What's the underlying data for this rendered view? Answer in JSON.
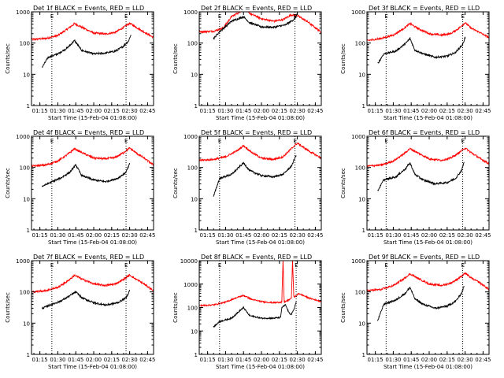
{
  "chart_data": [
    {
      "type": "line",
      "title": "Det 1f BLACK = Events, RED = LLD",
      "xlabel": "Start Time (15-Feb-04 01:08:00)",
      "ylabel": "Counts/sec",
      "yscale": "log",
      "ylim": [
        1,
        1000
      ],
      "xlim": [
        "01:08",
        "02:50"
      ],
      "x_ticks": [
        "01:15",
        "01:30",
        "01:45",
        "02:00",
        "02:15",
        "02:30",
        "02:45"
      ],
      "y_ticks": [
        "1",
        "10",
        "100",
        "1000"
      ],
      "markers": [
        {
          "x": "01:25",
          "label": "E"
        },
        {
          "x": "02:27",
          "label": "E"
        }
      ],
      "series": [
        {
          "color": "#ff0000",
          "x": [
            "01:08",
            "01:20",
            "01:30",
            "01:38",
            "01:44",
            "01:50",
            "02:00",
            "02:10",
            "02:18",
            "02:24",
            "02:30",
            "02:35",
            "02:40",
            "02:50"
          ],
          "values": [
            130,
            140,
            175,
            280,
            420,
            320,
            210,
            195,
            220,
            300,
            430,
            330,
            250,
            150
          ]
        },
        {
          "color": "#000000",
          "x": [
            "01:17",
            "01:22",
            "01:30",
            "01:38",
            "01:44",
            "01:50",
            "02:00",
            "02:10",
            "02:18",
            "02:24",
            "02:29",
            "02:31"
          ],
          "values": [
            17,
            35,
            45,
            70,
            120,
            58,
            45,
            48,
            55,
            75,
            115,
            180
          ]
        }
      ]
    },
    {
      "type": "line",
      "title": "Det 2f BLACK = Events, RED = LLD",
      "xlabel": "Start Time (15-Feb-04 01:08:00)",
      "ylabel": "Counts/sec",
      "yscale": "log",
      "ylim": [
        1,
        1000
      ],
      "xlim": [
        "01:08",
        "02:50"
      ],
      "x_ticks": [
        "01:15",
        "01:30",
        "01:45",
        "02:00",
        "02:15",
        "02:30",
        "02:45"
      ],
      "y_ticks": [
        "1",
        "10",
        "100",
        "1000"
      ],
      "markers": [
        {
          "x": "01:25",
          "label": "E"
        },
        {
          "x": "02:28",
          "label": "E"
        }
      ],
      "series": [
        {
          "color": "#ff0000",
          "x": [
            "01:08",
            "01:20",
            "01:28",
            "01:35",
            "01:42",
            "01:45",
            "01:50",
            "02:00",
            "02:10",
            "02:18",
            "02:25",
            "02:30",
            "02:38",
            "02:50"
          ],
          "values": [
            230,
            240,
            300,
            700,
            1000,
            1250,
            900,
            600,
            500,
            560,
            800,
            750,
            500,
            220
          ]
        },
        {
          "color": "#000000",
          "x": [
            "01:20",
            "01:25",
            "01:35",
            "01:45",
            "01:50",
            "02:00",
            "02:10",
            "02:20",
            "02:28",
            "02:30"
          ],
          "values": [
            140,
            230,
            500,
            700,
            450,
            330,
            320,
            380,
            600,
            900
          ]
        }
      ]
    },
    {
      "type": "line",
      "title": "Det 3f BLACK = Events, RED = LLD",
      "xlabel": "Start Time (15-Feb-04 01:08:00)",
      "ylabel": "Counts/sec",
      "yscale": "log",
      "ylim": [
        1,
        1000
      ],
      "xlim": [
        "01:08",
        "02:50"
      ],
      "x_ticks": [
        "01:15",
        "01:30",
        "01:45",
        "02:00",
        "02:15",
        "02:30",
        "02:45"
      ],
      "y_ticks": [
        "1",
        "10",
        "100",
        "1000"
      ],
      "markers": [
        {
          "x": "01:24",
          "label": "E"
        },
        {
          "x": "02:28",
          "label": "E"
        }
      ],
      "series": [
        {
          "color": "#ff0000",
          "x": [
            "01:08",
            "01:20",
            "01:30",
            "01:38",
            "01:44",
            "01:50",
            "02:00",
            "02:10",
            "02:18",
            "02:25",
            "02:30",
            "02:35",
            "02:42",
            "02:50"
          ],
          "values": [
            120,
            140,
            180,
            280,
            420,
            300,
            200,
            180,
            200,
            300,
            450,
            300,
            220,
            150
          ]
        },
        {
          "color": "#000000",
          "x": [
            "01:17",
            "01:22",
            "01:32",
            "01:40",
            "01:44",
            "01:48",
            "01:55",
            "02:05",
            "02:15",
            "02:22",
            "02:28",
            "02:30"
          ],
          "values": [
            22,
            45,
            55,
            95,
            140,
            60,
            45,
            35,
            38,
            50,
            90,
            150
          ]
        }
      ]
    },
    {
      "type": "line",
      "title": "Det 4f BLACK = Events, RED = LLD",
      "xlabel": "Start Time (15-Feb-04 01:08:00)",
      "ylabel": "Counts/sec",
      "yscale": "log",
      "ylim": [
        1,
        1000
      ],
      "xlim": [
        "01:08",
        "02:50"
      ],
      "x_ticks": [
        "01:15",
        "01:30",
        "01:45",
        "02:00",
        "02:15",
        "02:30",
        "02:45"
      ],
      "y_ticks": [
        "1",
        "10",
        "100",
        "1000"
      ],
      "markers": [
        {
          "x": "01:25",
          "label": "E"
        },
        {
          "x": "02:27",
          "label": "E"
        }
      ],
      "series": [
        {
          "color": "#ff0000",
          "x": [
            "01:08",
            "01:20",
            "01:30",
            "01:38",
            "01:44",
            "01:50",
            "02:00",
            "02:10",
            "02:18",
            "02:25",
            "02:30",
            "02:35",
            "02:42",
            "02:50"
          ],
          "values": [
            110,
            120,
            160,
            260,
            400,
            300,
            200,
            190,
            210,
            300,
            420,
            300,
            200,
            120
          ]
        },
        {
          "color": "#000000",
          "x": [
            "01:17",
            "01:25",
            "01:32",
            "01:40",
            "01:45",
            "01:50",
            "02:00",
            "02:10",
            "02:20",
            "02:27",
            "02:30"
          ],
          "values": [
            25,
            35,
            45,
            70,
            120,
            55,
            40,
            35,
            45,
            70,
            130
          ]
        }
      ]
    },
    {
      "type": "line",
      "title": "Det 5f BLACK = Events, RED = LLD",
      "xlabel": "Start Time (15-Feb-04 01:08:00)",
      "ylabel": "Counts/sec",
      "yscale": "log",
      "ylim": [
        1,
        1000
      ],
      "xlim": [
        "01:08",
        "02:50"
      ],
      "x_ticks": [
        "01:15",
        "01:30",
        "01:45",
        "02:00",
        "02:15",
        "02:30",
        "02:45"
      ],
      "y_ticks": [
        "1",
        "10",
        "100",
        "1000"
      ],
      "markers": [
        {
          "x": "01:25",
          "label": "E"
        },
        {
          "x": "02:28",
          "label": "E"
        }
      ],
      "series": [
        {
          "color": "#ff0000",
          "x": [
            "01:08",
            "01:20",
            "01:30",
            "01:40",
            "01:45",
            "01:52",
            "02:00",
            "02:10",
            "02:18",
            "02:25",
            "02:30",
            "02:40",
            "02:50"
          ],
          "values": [
            170,
            180,
            220,
            350,
            500,
            300,
            200,
            180,
            220,
            400,
            600,
            330,
            200
          ]
        },
        {
          "color": "#000000",
          "x": [
            "01:20",
            "01:25",
            "01:35",
            "01:45",
            "01:50",
            "02:00",
            "02:10",
            "02:18",
            "02:25",
            "02:29"
          ],
          "values": [
            12,
            45,
            60,
            140,
            80,
            55,
            50,
            60,
            110,
            250
          ]
        }
      ]
    },
    {
      "type": "line",
      "title": "Det 6f BLACK = Events, RED = LLD",
      "xlabel": "Start Time (15-Feb-04 01:08:00)",
      "ylabel": "Counts/sec",
      "yscale": "log",
      "ylim": [
        1,
        1000
      ],
      "xlim": [
        "01:08",
        "02:50"
      ],
      "x_ticks": [
        "01:15",
        "01:30",
        "01:45",
        "02:00",
        "02:15",
        "02:30",
        "02:45"
      ],
      "y_ticks": [
        "1",
        "10",
        "100",
        "1000"
      ],
      "markers": [
        {
          "x": "01:24",
          "label": "E"
        },
        {
          "x": "02:28",
          "label": "E"
        }
      ],
      "series": [
        {
          "color": "#ff0000",
          "x": [
            "01:08",
            "01:20",
            "01:30",
            "01:38",
            "01:44",
            "01:50",
            "02:00",
            "02:10",
            "02:18",
            "02:25",
            "02:30",
            "02:35",
            "02:42",
            "02:50"
          ],
          "values": [
            110,
            120,
            160,
            260,
            400,
            300,
            190,
            170,
            200,
            300,
            420,
            300,
            200,
            130
          ]
        },
        {
          "color": "#000000",
          "x": [
            "01:17",
            "01:22",
            "01:32",
            "01:40",
            "01:44",
            "01:48",
            "01:55",
            "02:05",
            "02:15",
            "02:22",
            "02:27",
            "02:29"
          ],
          "values": [
            18,
            40,
            50,
            90,
            140,
            60,
            40,
            30,
            33,
            45,
            80,
            140
          ]
        }
      ]
    },
    {
      "type": "line",
      "title": "Det 7f BLACK = Events, RED = LLD",
      "xlabel": "Start Time (15-Feb-04 01:08:00)",
      "ylabel": "Counts/sec",
      "yscale": "log",
      "ylim": [
        1,
        1000
      ],
      "xlim": [
        "01:08",
        "02:50"
      ],
      "x_ticks": [
        "01:15",
        "01:30",
        "01:45",
        "02:00",
        "02:15",
        "02:30",
        "02:45"
      ],
      "y_ticks": [
        "1",
        "10",
        "100",
        "1000"
      ],
      "markers": [
        {
          "x": "01:25",
          "label": "E"
        },
        {
          "x": "02:27",
          "label": "E"
        }
      ],
      "series": [
        {
          "color": "#ff0000",
          "x": [
            "01:08",
            "01:20",
            "01:30",
            "01:38",
            "01:44",
            "01:50",
            "02:00",
            "02:10",
            "02:18",
            "02:25",
            "02:30",
            "02:35",
            "02:42",
            "02:50"
          ],
          "values": [
            100,
            110,
            140,
            220,
            340,
            260,
            180,
            160,
            180,
            250,
            350,
            260,
            180,
            110
          ]
        },
        {
          "color": "#000000",
          "x": [
            "01:17",
            "01:25",
            "01:32",
            "01:40",
            "01:45",
            "01:50",
            "02:00",
            "02:10",
            "02:20",
            "02:27",
            "02:30"
          ],
          "values": [
            30,
            40,
            50,
            75,
            100,
            65,
            45,
            38,
            45,
            65,
            110
          ]
        }
      ]
    },
    {
      "type": "line",
      "title": "Det 8f BLACK = Events, RED = LLD",
      "xlabel": "Start Time (15-Feb-04 01:08:00)",
      "ylabel": "Counts/sec",
      "yscale": "log",
      "ylim": [
        1,
        10000
      ],
      "xlim": [
        "01:08",
        "02:50"
      ],
      "x_ticks": [
        "01:15",
        "01:30",
        "01:45",
        "02:00",
        "02:15",
        "02:30",
        "02:45"
      ],
      "y_ticks": [
        "1",
        "10",
        "100",
        "1000",
        "10000"
      ],
      "markers": [
        {
          "x": "01:25",
          "label": "E"
        },
        {
          "x": "02:29",
          "label": "E"
        }
      ],
      "series": [
        {
          "color": "#ff0000",
          "x": [
            "01:08",
            "01:20",
            "01:30",
            "01:38",
            "01:45",
            "01:52",
            "02:00",
            "02:10",
            "02:17",
            "02:18",
            "02:19",
            "02:21",
            "02:23",
            "02:25",
            "02:26",
            "02:27",
            "02:29",
            "02:31",
            "02:40",
            "02:50"
          ],
          "values": [
            120,
            130,
            170,
            250,
            330,
            220,
            180,
            160,
            170,
            10000,
            170,
            190,
            210,
            260,
            10000,
            300,
            300,
            400,
            250,
            180
          ]
        },
        {
          "color": "#000000",
          "x": [
            "01:20",
            "01:25",
            "01:35",
            "01:45",
            "01:50",
            "02:00",
            "02:10",
            "02:16",
            "02:17",
            "02:20",
            "02:23",
            "02:25",
            "02:27",
            "02:29"
          ],
          "values": [
            15,
            25,
            35,
            100,
            45,
            35,
            35,
            38,
            100,
            130,
            60,
            50,
            80,
            170
          ]
        }
      ]
    },
    {
      "type": "line",
      "title": "Det 9f BLACK = Events, RED = LLD",
      "xlabel": "Start Time (15-Feb-04 01:08:00)",
      "ylabel": "Counts/sec",
      "yscale": "log",
      "ylim": [
        1,
        1000
      ],
      "xlim": [
        "01:08",
        "02:50"
      ],
      "x_ticks": [
        "01:15",
        "01:30",
        "01:45",
        "02:00",
        "02:15",
        "02:30",
        "02:45"
      ],
      "y_ticks": [
        "1",
        "10",
        "100",
        "1000"
      ],
      "markers": [
        {
          "x": "01:24",
          "label": "E"
        },
        {
          "x": "02:28",
          "label": "E"
        }
      ],
      "series": [
        {
          "color": "#ff0000",
          "x": [
            "01:08",
            "01:20",
            "01:30",
            "01:38",
            "01:44",
            "01:50",
            "02:00",
            "02:10",
            "02:18",
            "02:25",
            "02:30",
            "02:35",
            "02:42",
            "02:50"
          ],
          "values": [
            110,
            120,
            160,
            250,
            380,
            280,
            180,
            160,
            190,
            280,
            400,
            280,
            200,
            120
          ]
        },
        {
          "color": "#000000",
          "x": [
            "01:17",
            "01:22",
            "01:32",
            "01:40",
            "01:44",
            "01:48",
            "01:55",
            "02:05",
            "02:15",
            "02:22",
            "02:27",
            "02:29"
          ],
          "values": [
            12,
            40,
            55,
            90,
            140,
            60,
            40,
            30,
            35,
            50,
            90,
            150
          ]
        }
      ]
    }
  ]
}
